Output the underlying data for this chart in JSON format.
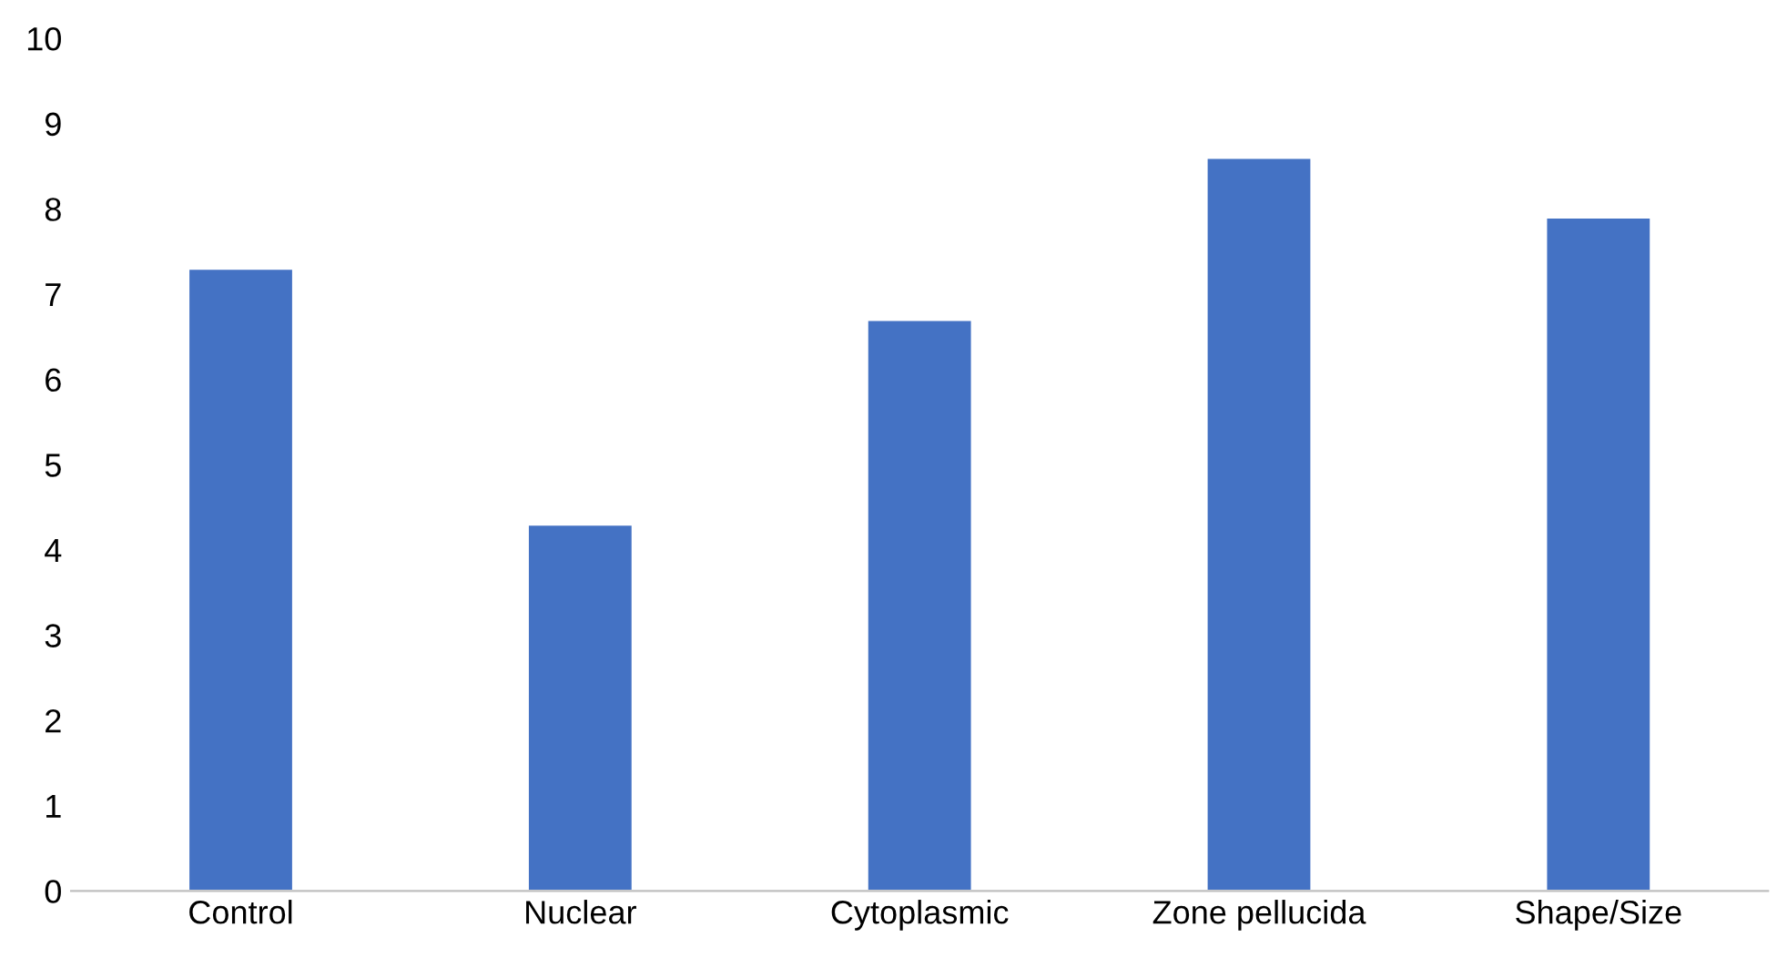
{
  "chart_data": {
    "type": "bar",
    "categories": [
      "Control",
      "Nuclear",
      "Cytoplasmic",
      "Zone pellucida",
      "Shape/Size"
    ],
    "values": [
      7.3,
      4.3,
      6.7,
      8.6,
      7.9
    ],
    "color": "#4472c4",
    "ylim": [
      0,
      10
    ],
    "yticks": [
      0,
      1,
      2,
      3,
      4,
      5,
      6,
      7,
      8,
      9,
      10
    ],
    "grid": false,
    "legend": false
  }
}
